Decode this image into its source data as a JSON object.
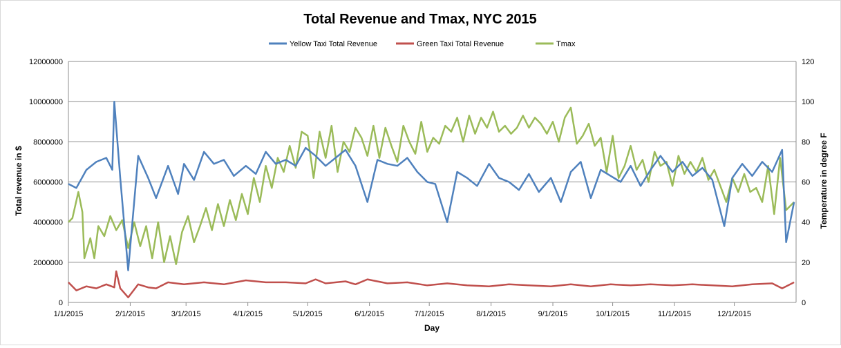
{
  "chart_data": {
    "type": "line",
    "title": "Total Revenue and Tmax, NYC 2015",
    "xlabel": "Day",
    "ylabel": "Total revenue in $",
    "y2label": "Temperature in degree F",
    "ylim": [
      0,
      12000000
    ],
    "y2lim": [
      0,
      120
    ],
    "yticks": [
      "0",
      "2000000",
      "4000000",
      "6000000",
      "8000000",
      "10000000",
      "12000000"
    ],
    "y2ticks": [
      "0",
      "20",
      "40",
      "60",
      "80",
      "100",
      "120"
    ],
    "xticks": [
      "1/1/2015",
      "2/1/2015",
      "3/1/2015",
      "4/1/2015",
      "5/1/2015",
      "6/1/2015",
      "7/1/2015",
      "8/1/2015",
      "9/1/2015",
      "10/1/2015",
      "11/1/2015",
      "12/1/2015"
    ],
    "xlim": [
      "2015-01-01",
      "2015-12-31"
    ],
    "grid": "horizontal",
    "legend": "top",
    "series": [
      {
        "name": "Yellow Taxi Total Revenue",
        "axis": "left",
        "color": "#4f81bd",
        "x": [
          "2015-01-01",
          "2015-01-05",
          "2015-01-10",
          "2015-01-15",
          "2015-01-20",
          "2015-01-23",
          "2015-01-24",
          "2015-01-27",
          "2015-01-31",
          "2015-02-05",
          "2015-02-10",
          "2015-02-14",
          "2015-02-20",
          "2015-02-25",
          "2015-02-28",
          "2015-03-05",
          "2015-03-10",
          "2015-03-15",
          "2015-03-20",
          "2015-03-25",
          "2015-03-31",
          "2015-04-05",
          "2015-04-10",
          "2015-04-15",
          "2015-04-20",
          "2015-04-25",
          "2015-04-30",
          "2015-05-05",
          "2015-05-10",
          "2015-05-15",
          "2015-05-20",
          "2015-05-25",
          "2015-05-31",
          "2015-06-05",
          "2015-06-10",
          "2015-06-15",
          "2015-06-20",
          "2015-06-25",
          "2015-06-30",
          "2015-07-04",
          "2015-07-10",
          "2015-07-15",
          "2015-07-20",
          "2015-07-25",
          "2015-07-31",
          "2015-08-05",
          "2015-08-10",
          "2015-08-15",
          "2015-08-20",
          "2015-08-25",
          "2015-08-31",
          "2015-09-05",
          "2015-09-10",
          "2015-09-15",
          "2015-09-20",
          "2015-09-25",
          "2015-09-30",
          "2015-10-05",
          "2015-10-10",
          "2015-10-15",
          "2015-10-20",
          "2015-10-25",
          "2015-10-31",
          "2015-11-05",
          "2015-11-10",
          "2015-11-15",
          "2015-11-20",
          "2015-11-26",
          "2015-11-30",
          "2015-12-05",
          "2015-12-10",
          "2015-12-15",
          "2015-12-20",
          "2015-12-25",
          "2015-12-27",
          "2015-12-31"
        ],
        "values": [
          5900000,
          5700000,
          6600000,
          7000000,
          7200000,
          6600000,
          10000000,
          6200000,
          1600000,
          7300000,
          6200000,
          5200000,
          6800000,
          5400000,
          6900000,
          6100000,
          7500000,
          6900000,
          7100000,
          6300000,
          6800000,
          6400000,
          7500000,
          6900000,
          7100000,
          6800000,
          7700000,
          7300000,
          6800000,
          7200000,
          7600000,
          6800000,
          5000000,
          7100000,
          6900000,
          6800000,
          7200000,
          6500000,
          6000000,
          5900000,
          4000000,
          6500000,
          6200000,
          5800000,
          6900000,
          6200000,
          6000000,
          5600000,
          6400000,
          5500000,
          6200000,
          5000000,
          6500000,
          7000000,
          5200000,
          6600000,
          6300000,
          6000000,
          6800000,
          5800000,
          6600000,
          7300000,
          6500000,
          7000000,
          6300000,
          6700000,
          6100000,
          3800000,
          6200000,
          6900000,
          6300000,
          7000000,
          6500000,
          7600000,
          3000000,
          5000000
        ]
      },
      {
        "name": "Green Taxi Total Revenue",
        "axis": "left",
        "color": "#c0504d",
        "x": [
          "2015-01-01",
          "2015-01-05",
          "2015-01-10",
          "2015-01-15",
          "2015-01-20",
          "2015-01-24",
          "2015-01-25",
          "2015-01-27",
          "2015-01-31",
          "2015-02-05",
          "2015-02-10",
          "2015-02-14",
          "2015-02-20",
          "2015-02-28",
          "2015-03-10",
          "2015-03-20",
          "2015-03-31",
          "2015-04-10",
          "2015-04-20",
          "2015-04-30",
          "2015-05-05",
          "2015-05-10",
          "2015-05-20",
          "2015-05-25",
          "2015-05-31",
          "2015-06-10",
          "2015-06-20",
          "2015-06-30",
          "2015-07-10",
          "2015-07-20",
          "2015-07-31",
          "2015-08-10",
          "2015-08-20",
          "2015-08-31",
          "2015-09-10",
          "2015-09-20",
          "2015-09-30",
          "2015-10-10",
          "2015-10-20",
          "2015-10-31",
          "2015-11-10",
          "2015-11-20",
          "2015-11-30",
          "2015-12-10",
          "2015-12-20",
          "2015-12-25",
          "2015-12-31"
        ],
        "values": [
          1000000,
          600000,
          800000,
          700000,
          900000,
          750000,
          1550000,
          700000,
          250000,
          900000,
          750000,
          700000,
          1000000,
          900000,
          1000000,
          900000,
          1100000,
          1000000,
          1000000,
          950000,
          1150000,
          950000,
          1050000,
          900000,
          1150000,
          950000,
          1000000,
          850000,
          950000,
          850000,
          800000,
          900000,
          850000,
          800000,
          900000,
          800000,
          900000,
          850000,
          900000,
          850000,
          900000,
          850000,
          800000,
          900000,
          950000,
          700000,
          1000000
        ]
      },
      {
        "name": "Tmax",
        "axis": "right",
        "color": "#9bbb59",
        "x": [
          "2015-01-01",
          "2015-01-03",
          "2015-01-06",
          "2015-01-08",
          "2015-01-09",
          "2015-01-12",
          "2015-01-14",
          "2015-01-16",
          "2015-01-19",
          "2015-01-22",
          "2015-01-25",
          "2015-01-28",
          "2015-01-31",
          "2015-02-03",
          "2015-02-06",
          "2015-02-09",
          "2015-02-12",
          "2015-02-15",
          "2015-02-18",
          "2015-02-21",
          "2015-02-24",
          "2015-02-27",
          "2015-03-02",
          "2015-03-05",
          "2015-03-08",
          "2015-03-11",
          "2015-03-14",
          "2015-03-17",
          "2015-03-20",
          "2015-03-23",
          "2015-03-26",
          "2015-03-29",
          "2015-04-01",
          "2015-04-04",
          "2015-04-07",
          "2015-04-10",
          "2015-04-13",
          "2015-04-16",
          "2015-04-19",
          "2015-04-22",
          "2015-04-25",
          "2015-04-28",
          "2015-05-01",
          "2015-05-04",
          "2015-05-07",
          "2015-05-10",
          "2015-05-13",
          "2015-05-16",
          "2015-05-19",
          "2015-05-22",
          "2015-05-25",
          "2015-05-28",
          "2015-05-31",
          "2015-06-03",
          "2015-06-06",
          "2015-06-09",
          "2015-06-12",
          "2015-06-15",
          "2015-06-18",
          "2015-06-21",
          "2015-06-24",
          "2015-06-27",
          "2015-06-30",
          "2015-07-03",
          "2015-07-06",
          "2015-07-09",
          "2015-07-12",
          "2015-07-15",
          "2015-07-18",
          "2015-07-21",
          "2015-07-24",
          "2015-07-27",
          "2015-07-30",
          "2015-08-02",
          "2015-08-05",
          "2015-08-08",
          "2015-08-11",
          "2015-08-14",
          "2015-08-17",
          "2015-08-20",
          "2015-08-23",
          "2015-08-26",
          "2015-08-29",
          "2015-09-01",
          "2015-09-04",
          "2015-09-07",
          "2015-09-10",
          "2015-09-13",
          "2015-09-16",
          "2015-09-19",
          "2015-09-22",
          "2015-09-25",
          "2015-09-28",
          "2015-10-01",
          "2015-10-04",
          "2015-10-07",
          "2015-10-10",
          "2015-10-13",
          "2015-10-16",
          "2015-10-19",
          "2015-10-22",
          "2015-10-25",
          "2015-10-28",
          "2015-10-31",
          "2015-11-03",
          "2015-11-06",
          "2015-11-09",
          "2015-11-12",
          "2015-11-15",
          "2015-11-18",
          "2015-11-21",
          "2015-11-24",
          "2015-11-27",
          "2015-11-30",
          "2015-12-03",
          "2015-12-06",
          "2015-12-09",
          "2015-12-12",
          "2015-12-15",
          "2015-12-18",
          "2015-12-21",
          "2015-12-24",
          "2015-12-27",
          "2015-12-31"
        ],
        "values": [
          40,
          42,
          55,
          45,
          22,
          32,
          22,
          38,
          33,
          43,
          36,
          41,
          27,
          40,
          28,
          38,
          22,
          40,
          20,
          33,
          19,
          35,
          43,
          30,
          38,
          47,
          36,
          49,
          38,
          51,
          41,
          54,
          44,
          62,
          50,
          68,
          57,
          72,
          65,
          78,
          67,
          85,
          83,
          62,
          85,
          72,
          88,
          65,
          80,
          75,
          87,
          82,
          73,
          88,
          72,
          87,
          78,
          70,
          88,
          80,
          74,
          90,
          75,
          82,
          79,
          88,
          85,
          92,
          80,
          93,
          84,
          92,
          87,
          95,
          85,
          88,
          84,
          87,
          93,
          87,
          92,
          89,
          84,
          90,
          80,
          92,
          97,
          79,
          83,
          89,
          78,
          82,
          65,
          83,
          62,
          68,
          78,
          66,
          71,
          60,
          75,
          68,
          70,
          58,
          73,
          64,
          70,
          65,
          72,
          61,
          66,
          58,
          50,
          62,
          55,
          64,
          55,
          57,
          50,
          68,
          44,
          72,
          46,
          50
        ]
      }
    ]
  }
}
